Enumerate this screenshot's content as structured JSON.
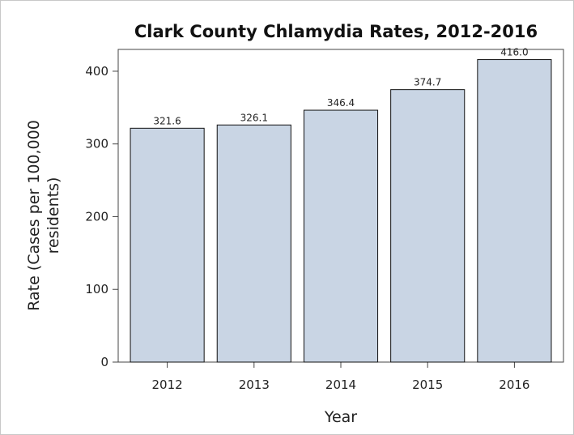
{
  "chart_data": {
    "type": "bar",
    "title": "Clark County Chlamydia Rates, 2012-2016",
    "xlabel": "Year",
    "ylabel_lines": [
      "Rate (Cases per 100,000",
      "residents)"
    ],
    "categories": [
      "2012",
      "2013",
      "2014",
      "2015",
      "2016"
    ],
    "values": [
      321.6,
      326.1,
      346.4,
      374.7,
      416.0
    ],
    "value_labels": [
      "321.6",
      "326.1",
      "346.4",
      "374.7",
      "416.0"
    ],
    "ylim": [
      0,
      430
    ],
    "yticks": [
      0,
      100,
      200,
      300,
      400
    ],
    "grid": false,
    "legend": "none",
    "bar_color": "#c9d5e4",
    "bar_edge_color": "#111111"
  }
}
